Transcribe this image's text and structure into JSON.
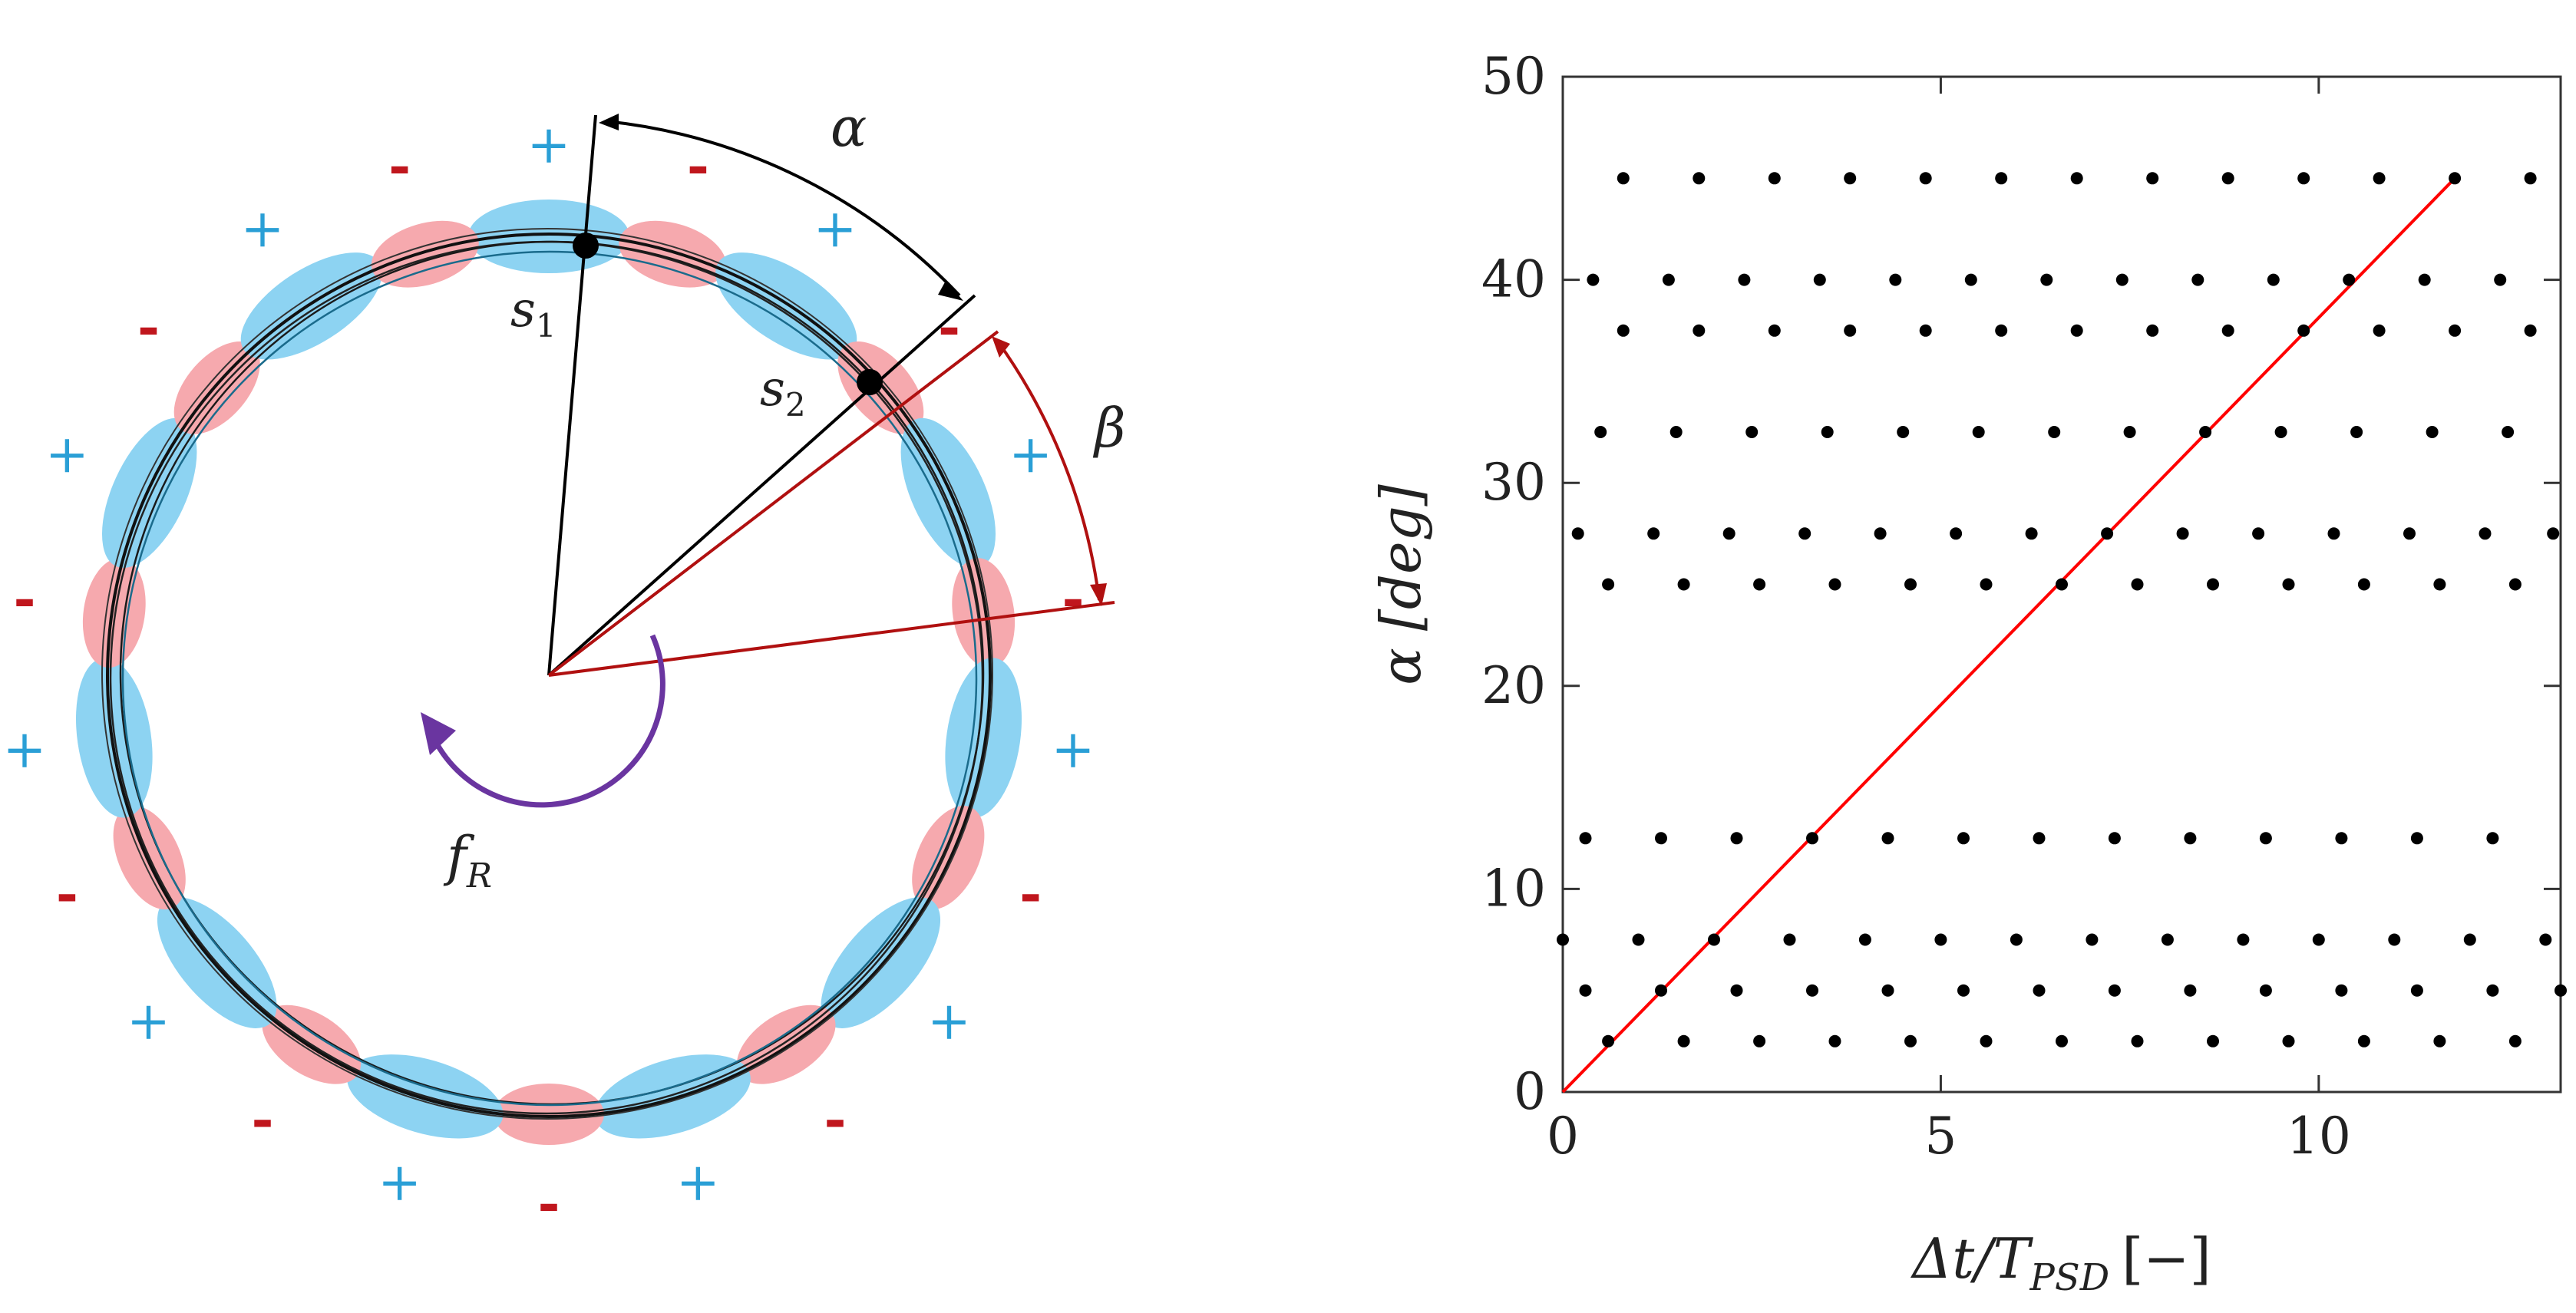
{
  "diagram": {
    "labels": {
      "alpha": "α",
      "beta": "β",
      "s1": "s",
      "s1_sub": "1",
      "s2": "s",
      "s2_sub": "2",
      "fR": "f",
      "fR_sub": "R"
    },
    "pole_count": 22,
    "plus_sign": "+",
    "minus_sign": "-",
    "colors": {
      "positive_pole": "#8dd3f2",
      "negative_pole": "#f6a9ae",
      "plus_sign": "#2a9fd6",
      "minus_sign": "#c0161d",
      "alpha_lines": "#000000",
      "beta_lines": "#b01010",
      "rotation_arrow": "#6a35a0"
    }
  },
  "chart_data": {
    "type": "scatter",
    "xlabel_parts": {
      "main": "Δt/T",
      "sub": "PSD",
      "unit": "[−]"
    },
    "ylabel_parts": {
      "main": "α",
      "unit": "[deg]"
    },
    "xlim": [
      0,
      13.2
    ],
    "ylim": [
      0,
      50
    ],
    "x_ticks": [
      "0",
      "5",
      "10"
    ],
    "y_ticks": [
      "0",
      "10",
      "20",
      "30",
      "40",
      "50"
    ],
    "grid": false,
    "dot_color": "#000000",
    "line_color": "#ff0000",
    "series": [
      {
        "values": [
          {
            "alpha": 45,
            "x": [
              0.8,
              1.8,
              2.8,
              3.8,
              4.8,
              5.8,
              6.8,
              7.8,
              8.8,
              9.8,
              10.8,
              11.8,
              12.8
            ]
          },
          {
            "alpha": 40,
            "x": [
              0.4,
              1.4,
              2.4,
              3.4,
              4.4,
              5.4,
              6.4,
              7.4,
              8.4,
              9.4,
              10.4,
              11.4,
              12.4
            ]
          },
          {
            "alpha": 37.5,
            "x": [
              0.8,
              1.8,
              2.8,
              3.8,
              4.8,
              5.8,
              6.8,
              7.8,
              8.8,
              9.8,
              10.8,
              11.8,
              12.8
            ]
          },
          {
            "alpha": 32.5,
            "x": [
              0.5,
              1.5,
              2.5,
              3.5,
              4.5,
              5.5,
              6.5,
              7.5,
              8.5,
              9.5,
              10.5,
              11.5,
              12.5
            ]
          },
          {
            "alpha": 27.5,
            "x": [
              0.2,
              1.2,
              2.2,
              3.2,
              4.2,
              5.2,
              6.2,
              7.2,
              8.2,
              9.2,
              10.2,
              11.2,
              12.2,
              13.1
            ]
          },
          {
            "alpha": 25,
            "x": [
              0.6,
              1.6,
              2.6,
              3.6,
              4.6,
              5.6,
              6.6,
              7.6,
              8.6,
              9.6,
              10.6,
              11.6,
              12.6
            ]
          },
          {
            "alpha": 12.5,
            "x": [
              0.3,
              1.3,
              2.3,
              3.3,
              4.3,
              5.3,
              6.3,
              7.3,
              8.3,
              9.3,
              10.3,
              11.3,
              12.3
            ]
          },
          {
            "alpha": 7.5,
            "x": [
              0,
              1,
              2,
              3,
              4,
              5,
              6,
              7,
              8,
              9,
              10,
              11,
              12,
              13
            ]
          },
          {
            "alpha": 5,
            "x": [
              0.3,
              1.3,
              2.3,
              3.3,
              4.3,
              5.3,
              6.3,
              7.3,
              8.3,
              9.3,
              10.3,
              11.3,
              12.3,
              13.2
            ]
          },
          {
            "alpha": 2.5,
            "x": [
              0.6,
              1.6,
              2.6,
              3.6,
              4.6,
              5.6,
              6.6,
              7.6,
              8.6,
              9.6,
              10.6,
              11.6,
              12.6
            ]
          }
        ]
      }
    ],
    "trend_line": {
      "x": [
        0,
        11.8
      ],
      "y": [
        0,
        45
      ]
    }
  }
}
